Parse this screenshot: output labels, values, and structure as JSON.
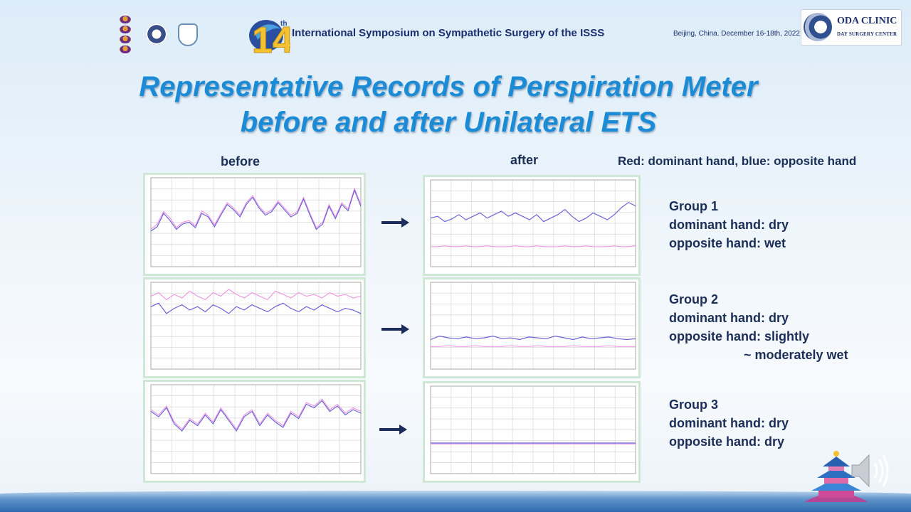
{
  "header": {
    "symposium_number": "14",
    "symposium_superscript": "th",
    "symposium_title": "International Symposium on Sympathetic Surgery of the ISSS",
    "location_date": "Beijing, China. December 16-18th, 2022.",
    "clinic_name": "ODA CLINIC",
    "clinic_subtitle": "DAY SURGERY CENTER"
  },
  "slide": {
    "title_line1": "Representative Records of Perspiration Meter",
    "title_line2": "before and after Unilateral ETS",
    "label_before": "before",
    "label_after": "after",
    "legend": "Red: dominant hand, blue: opposite hand"
  },
  "groups": [
    {
      "name": "Group 1",
      "line1": "dominant  hand: dry",
      "line2": "opposite  hand: wet",
      "line3": ""
    },
    {
      "name": "Group 2",
      "line1": "dominant  hand: dry",
      "line2": "opposite  hand: slightly",
      "line3": "~ moderately  wet"
    },
    {
      "name": "Group 3",
      "line1": "dominant  hand: dry",
      "line2": "opposite  hand: dry",
      "line3": ""
    }
  ],
  "colors": {
    "title": "#1b8bd6",
    "dominant_hand": "#f08ae0",
    "opposite_hand": "#6a63d6",
    "arrow": "#1c2c5c"
  },
  "chart_data": [
    {
      "type": "line",
      "title": "Group 1 before",
      "ylim": [
        0,
        100
      ],
      "series": [
        {
          "name": "dominant hand",
          "values": [
            42,
            48,
            62,
            55,
            44,
            50,
            52,
            46,
            63,
            58,
            47,
            60,
            72,
            66,
            58,
            72,
            80,
            68,
            60,
            64,
            74,
            66,
            58,
            62,
            78,
            60,
            44,
            50,
            70,
            56,
            72,
            65,
            88,
            70
          ]
        },
        {
          "name": "opposite hand",
          "values": [
            40,
            45,
            60,
            52,
            42,
            48,
            50,
            44,
            60,
            56,
            45,
            58,
            70,
            64,
            56,
            70,
            78,
            66,
            58,
            62,
            72,
            64,
            56,
            60,
            76,
            58,
            42,
            48,
            68,
            54,
            70,
            63,
            86,
            68
          ]
        }
      ]
    },
    {
      "type": "line",
      "title": "Group 1 after",
      "ylim": [
        0,
        100
      ],
      "series": [
        {
          "name": "dominant hand",
          "values": [
            23,
            23,
            24,
            23,
            23,
            24,
            23,
            23,
            24,
            23,
            23,
            23,
            24,
            23,
            23,
            24,
            23,
            23,
            23,
            24,
            23,
            23,
            24,
            23,
            23,
            23,
            24,
            23,
            23,
            24
          ]
        },
        {
          "name": "opposite hand",
          "values": [
            56,
            58,
            52,
            55,
            60,
            54,
            58,
            62,
            56,
            60,
            64,
            58,
            62,
            58,
            54,
            60,
            52,
            56,
            60,
            66,
            58,
            52,
            56,
            62,
            58,
            54,
            60,
            68,
            74,
            70
          ]
        }
      ]
    },
    {
      "type": "line",
      "title": "Group 2 before",
      "ylim": [
        0,
        100
      ],
      "series": [
        {
          "name": "dominant hand",
          "values": [
            84,
            88,
            80,
            86,
            82,
            90,
            84,
            80,
            88,
            84,
            92,
            86,
            82,
            88,
            84,
            80,
            90,
            86,
            82,
            88,
            84,
            86,
            82,
            88,
            84,
            86,
            82,
            84
          ]
        },
        {
          "name": "opposite hand",
          "values": [
            72,
            76,
            64,
            70,
            74,
            68,
            72,
            66,
            74,
            70,
            64,
            72,
            68,
            74,
            70,
            66,
            72,
            76,
            70,
            66,
            72,
            68,
            74,
            70,
            66,
            70,
            68,
            64
          ]
        }
      ]
    },
    {
      "type": "line",
      "title": "Group 2 after",
      "ylim": [
        0,
        100
      ],
      "series": [
        {
          "name": "dominant hand",
          "values": [
            26,
            26,
            27,
            26,
            26,
            27,
            26,
            26,
            26,
            27,
            26,
            26,
            27,
            26,
            26,
            26,
            27,
            26,
            26,
            26,
            27,
            26,
            26,
            26
          ]
        },
        {
          "name": "opposite hand",
          "values": [
            34,
            38,
            36,
            35,
            37,
            35,
            36,
            38,
            35,
            36,
            34,
            37,
            36,
            35,
            38,
            36,
            34,
            37,
            35,
            36,
            37,
            35,
            34,
            35
          ]
        }
      ]
    },
    {
      "type": "line",
      "title": "Group 3 before",
      "ylim": [
        0,
        100
      ],
      "series": [
        {
          "name": "dominant hand",
          "values": [
            72,
            66,
            76,
            58,
            50,
            62,
            56,
            68,
            58,
            74,
            62,
            50,
            66,
            72,
            56,
            68,
            60,
            54,
            70,
            64,
            80,
            76,
            84,
            72,
            78,
            68,
            74,
            70
          ]
        },
        {
          "name": "opposite hand",
          "values": [
            70,
            64,
            74,
            56,
            48,
            60,
            54,
            66,
            56,
            72,
            60,
            48,
            64,
            70,
            54,
            66,
            58,
            52,
            68,
            62,
            78,
            74,
            82,
            70,
            76,
            66,
            72,
            68
          ]
        }
      ]
    },
    {
      "type": "line",
      "title": "Group 3 after",
      "ylim": [
        0,
        100
      ],
      "series": [
        {
          "name": "dominant hand",
          "values": [
            34,
            34,
            34,
            34,
            34,
            34,
            34,
            34,
            34,
            34,
            34,
            34,
            34,
            34,
            34,
            34,
            34,
            34,
            34,
            34
          ]
        },
        {
          "name": "opposite hand",
          "values": [
            35,
            35,
            35,
            35,
            35,
            35,
            35,
            35,
            35,
            35,
            35,
            35,
            35,
            35,
            35,
            35,
            35,
            35,
            35,
            35
          ]
        }
      ]
    }
  ]
}
